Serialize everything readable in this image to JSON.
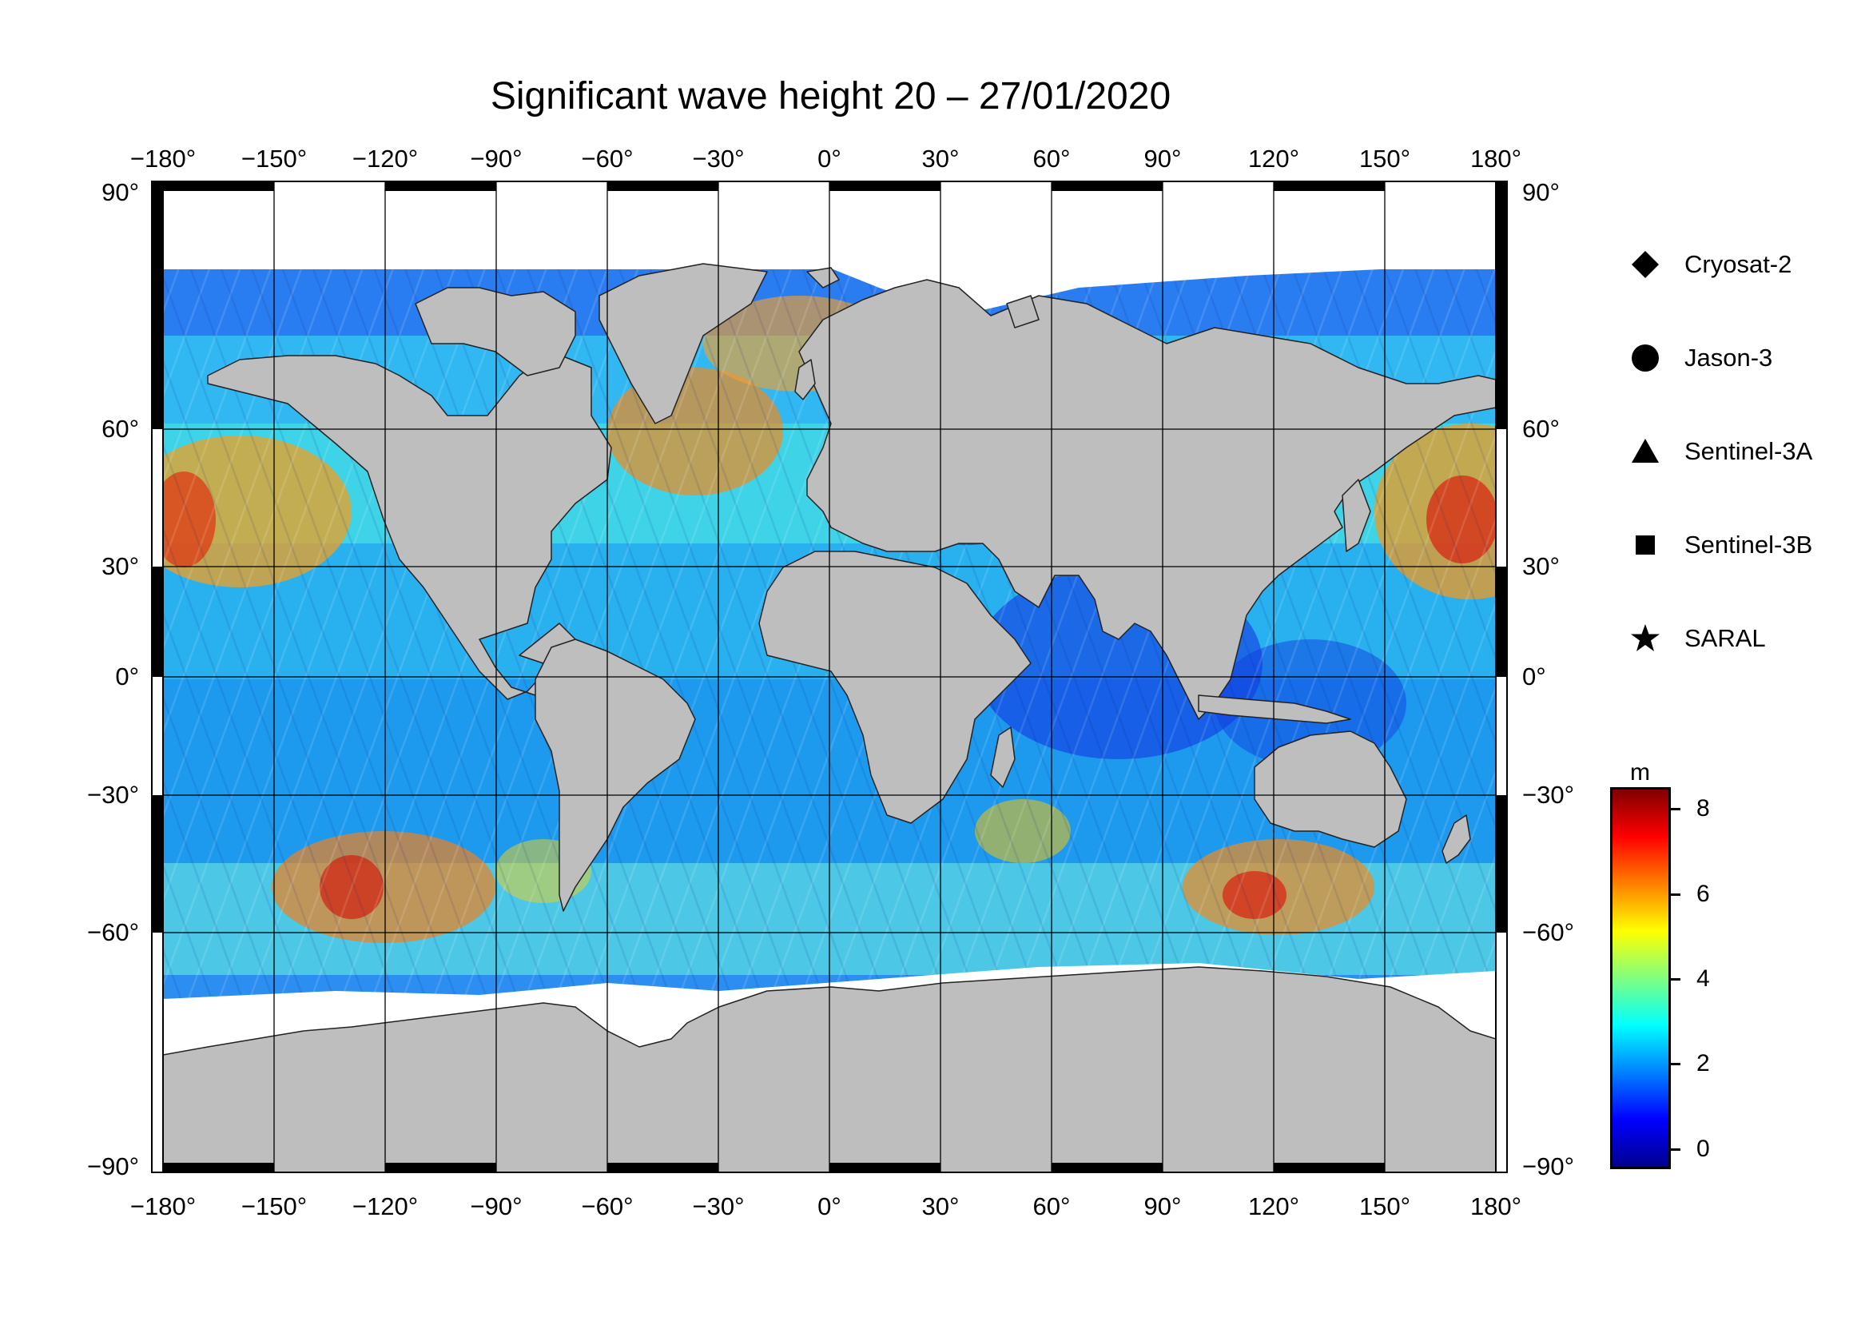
{
  "title": "Significant wave height 20 – 27/01/2020",
  "map": {
    "projection": "equirectangular",
    "lon_range": [
      -180,
      180
    ],
    "lat_range": [
      -90,
      90
    ],
    "grid_lon": [
      -150,
      -120,
      -90,
      -60,
      -30,
      0,
      30,
      60,
      90,
      120,
      150
    ],
    "grid_lat": [
      -60,
      -30,
      0,
      30,
      60
    ],
    "lon_labels": [
      "−180°",
      "−150°",
      "−120°",
      "−90°",
      "−60°",
      "−30°",
      "0°",
      "30°",
      "60°",
      "90°",
      "120°",
      "150°",
      "180°"
    ],
    "lat_labels": [
      "90°",
      "60°",
      "30°",
      "0°",
      "−30°",
      "−60°",
      "−90°"
    ],
    "land_color": "#bebebe",
    "no_data_color": "#ffffff"
  },
  "legend": {
    "items": [
      {
        "label": "Cryosat-2",
        "marker": "diamond-icon"
      },
      {
        "label": "Jason-3",
        "marker": "circle-icon"
      },
      {
        "label": "Sentinel-3A",
        "marker": "triangle-icon"
      },
      {
        "label": "Sentinel-3B",
        "marker": "square-icon"
      },
      {
        "label": "SARAL",
        "marker": "star-icon"
      }
    ]
  },
  "colorbar": {
    "unit": "m",
    "range": [
      -0.8,
      8.6
    ],
    "ticks": [
      "0",
      "2",
      "4",
      "6",
      "8"
    ],
    "colormap": [
      "#00008f",
      "#0000ff",
      "#0080ff",
      "#00ffff",
      "#80ff80",
      "#ffff00",
      "#ff8000",
      "#ff0000",
      "#800000"
    ]
  }
}
